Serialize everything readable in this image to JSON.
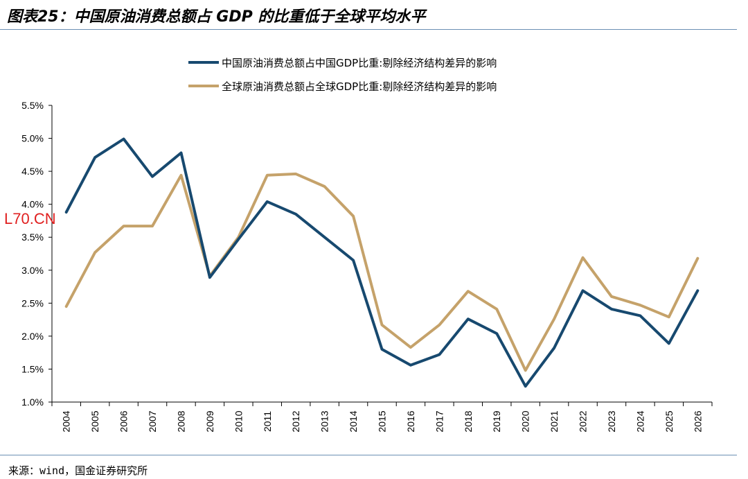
{
  "header": {
    "title": "图表25：中国原油消费总额占 GDP 的比重低于全球平均水平"
  },
  "footer": {
    "source": "来源：wind，国金证券研究所"
  },
  "watermark": "L70.CN",
  "chart_data": {
    "type": "line",
    "title": "",
    "xlabel": "",
    "ylabel": "",
    "x": [
      "2004",
      "2005",
      "2006",
      "2007",
      "2008",
      "2009",
      "2010",
      "2011",
      "2012",
      "2013",
      "2014",
      "2015",
      "2016",
      "2017",
      "2018",
      "2019",
      "2020",
      "2021",
      "2022",
      "2023",
      "2024",
      "2025",
      "2026"
    ],
    "ylim": [
      1.0,
      5.5
    ],
    "yticks": [
      "1.0%",
      "1.5%",
      "2.0%",
      "2.5%",
      "3.0%",
      "3.5%",
      "4.0%",
      "4.5%",
      "5.0%",
      "5.5%"
    ],
    "ytick_values": [
      1.0,
      1.5,
      2.0,
      2.5,
      3.0,
      3.5,
      4.0,
      4.5,
      5.0,
      5.5
    ],
    "grid": false,
    "legend_position": "top-center",
    "series": [
      {
        "name": "中国原油消费总额占中国GDP比重:剔除经济结构差异的影响",
        "color": "#17496f",
        "values": [
          3.88,
          4.71,
          4.99,
          4.42,
          4.78,
          2.89,
          3.47,
          4.04,
          3.85,
          3.5,
          3.15,
          1.8,
          1.56,
          1.72,
          2.26,
          2.04,
          1.24,
          1.82,
          2.69,
          2.41,
          2.31,
          1.89,
          2.69
        ]
      },
      {
        "name": "全球原油消费总额占全球GDP比重:剔除经济结构差异的影响",
        "color": "#c5a26a",
        "values": [
          2.45,
          3.27,
          3.67,
          3.67,
          4.44,
          2.91,
          3.5,
          4.44,
          4.46,
          4.27,
          3.82,
          2.17,
          1.83,
          2.17,
          2.68,
          2.41,
          1.48,
          2.26,
          3.19,
          2.6,
          2.47,
          2.29,
          3.18
        ]
      }
    ]
  }
}
